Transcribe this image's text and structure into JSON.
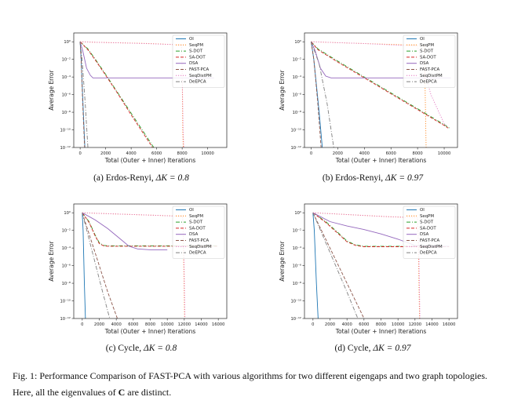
{
  "figure": {
    "caption_prefix": "Fig. 1: ",
    "caption_text": "Performance Comparison of FAST-PCA with various algorithms for two different eigengaps and two graph topologies. Here, all the eigenvalues of ",
    "caption_symbol": "C",
    "caption_suffix": " are distinct."
  },
  "legend_entries": [
    "OI",
    "SeqPM",
    "S-DOT",
    "SA-DOT",
    "DSA",
    "FAST-PCA",
    "SeqDistPM",
    "DeEPCA"
  ],
  "series_styles": {
    "OI": {
      "color": "#1f77b4",
      "dash": "solid"
    },
    "SeqPM": {
      "color": "#ff7f0e",
      "dash": "dot"
    },
    "S-DOT": {
      "color": "#2ca02c",
      "dash": "dashdot"
    },
    "SA-DOT": {
      "color": "#d62728",
      "dash": "dash"
    },
    "DSA": {
      "color": "#9467bd",
      "dash": "solid"
    },
    "FAST-PCA": {
      "color": "#8c564b",
      "dash": "dash"
    },
    "SeqDistPM": {
      "color": "#e377c2",
      "dash": "dot"
    },
    "DeEPCA": {
      "color": "#7f7f7f",
      "dash": "dashdot"
    }
  },
  "chart_data": [
    {
      "type": "line",
      "caption": "(a) Erdos-Renyi, ",
      "caption_math": "ΔK = 0.8",
      "xlabel": "Total (Outer + Inner) Iterations",
      "ylabel": "Average Error",
      "log_y": true,
      "xlim": [
        -500,
        11500
      ],
      "ylim_exp": [
        -12,
        1
      ],
      "xticks": [
        0,
        2000,
        4000,
        6000,
        8000,
        10000
      ],
      "xtick_labels": [
        "0",
        "2000",
        "4000",
        "6000",
        "8000",
        "10000"
      ],
      "yticks_exp": [
        0,
        -2,
        -4,
        -6,
        -8,
        -10,
        -12
      ],
      "ytick_labels": [
        "10⁰",
        "10⁻²",
        "10⁻⁴",
        "10⁻⁶",
        "10⁻⁸",
        "10⁻¹⁰",
        "10⁻¹²"
      ],
      "legend_position": "top-right",
      "series": [
        {
          "name": "OI",
          "x": [
            0,
            80,
            250,
            400
          ],
          "y_exp": [
            0,
            -2,
            -8,
            -13
          ]
        },
        {
          "name": "SeqPM",
          "x": [
            0,
            1000,
            2500,
            4000,
            5500,
            7000,
            7950,
            8000,
            8050,
            8100
          ],
          "y_exp": [
            0,
            -0.05,
            -0.1,
            -0.15,
            -0.2,
            -0.3,
            -0.35,
            -3,
            -10,
            -13
          ]
        },
        {
          "name": "S-DOT",
          "x": [
            0,
            600,
            1200,
            2000,
            3000,
            4000,
            5000,
            6000,
            6500
          ],
          "y_exp": [
            0,
            -0.8,
            -2,
            -3.7,
            -5.9,
            -8.1,
            -10.3,
            -12.5,
            -13
          ]
        },
        {
          "name": "SA-DOT",
          "x": [
            0,
            600,
            1200,
            2000,
            3000,
            4000,
            5000,
            6000,
            6400
          ],
          "y_exp": [
            0,
            -0.9,
            -2.1,
            -3.8,
            -6,
            -8.3,
            -10.5,
            -12.7,
            -13
          ]
        },
        {
          "name": "DSA",
          "x": [
            0,
            200,
            500,
            800,
            1000,
            2000,
            6000,
            10500
          ],
          "y_exp": [
            0,
            -1,
            -3,
            -3.8,
            -4.1,
            -4.1,
            -4.1,
            -4.1
          ]
        },
        {
          "name": "FAST-PCA",
          "x": [
            0,
            80,
            200,
            380
          ],
          "y_exp": [
            0,
            -2,
            -7,
            -13
          ]
        },
        {
          "name": "SeqDistPM",
          "x": [
            0,
            1000,
            3000,
            5000,
            7000,
            7950,
            8000,
            8080,
            8150
          ],
          "y_exp": [
            0,
            -0.05,
            -0.12,
            -0.2,
            -0.3,
            -0.38,
            -3,
            -10,
            -13
          ]
        },
        {
          "name": "DeEPCA",
          "x": [
            0,
            150,
            400,
            650
          ],
          "y_exp": [
            0,
            -2,
            -7,
            -13
          ]
        }
      ]
    },
    {
      "type": "line",
      "caption": "(b) Erdos-Renyi, ",
      "caption_math": "ΔK = 0.97",
      "xlabel": "Total (Outer + Inner) Iterations",
      "ylabel": "Average Error",
      "log_y": true,
      "xlim": [
        -500,
        11000
      ],
      "ylim_exp": [
        -12,
        1
      ],
      "xticks": [
        0,
        2000,
        4000,
        6000,
        8000,
        10000
      ],
      "xtick_labels": [
        "0",
        "2000",
        "4000",
        "6000",
        "8000",
        "10000"
      ],
      "yticks_exp": [
        0,
        -2,
        -4,
        -6,
        -8,
        -10,
        -12
      ],
      "ytick_labels": [
        "10⁰",
        "10⁻²",
        "10⁻⁴",
        "10⁻⁶",
        "10⁻⁸",
        "10⁻¹⁰",
        "10⁻¹²"
      ],
      "legend_position": "top-right",
      "series": [
        {
          "name": "OI",
          "x": [
            0,
            200,
            600,
            900
          ],
          "y_exp": [
            0,
            -2,
            -8,
            -13
          ]
        },
        {
          "name": "SeqPM",
          "x": [
            0,
            2000,
            4000,
            6000,
            8000,
            8500,
            8550,
            8650
          ],
          "y_exp": [
            0,
            -0.1,
            -0.2,
            -0.3,
            -0.4,
            -0.45,
            -4,
            -13
          ]
        },
        {
          "name": "S-DOT",
          "x": [
            0,
            500,
            2000,
            4000,
            6000,
            8000,
            10000,
            10400
          ],
          "y_exp": [
            0,
            -0.8,
            -2.2,
            -4.0,
            -5.8,
            -7.6,
            -9.4,
            -9.8
          ]
        },
        {
          "name": "SA-DOT",
          "x": [
            0,
            500,
            2000,
            4000,
            6000,
            8000,
            10000,
            10300
          ],
          "y_exp": [
            0,
            -0.9,
            -2.3,
            -4.1,
            -5.9,
            -7.7,
            -9.5,
            -9.8
          ]
        },
        {
          "name": "DSA",
          "x": [
            0,
            300,
            700,
            1100,
            1500,
            3000,
            7000,
            10500
          ],
          "y_exp": [
            0,
            -1,
            -3,
            -3.9,
            -4.1,
            -4.1,
            -4.1,
            -4.1
          ]
        },
        {
          "name": "FAST-PCA",
          "x": [
            0,
            200,
            500,
            800
          ],
          "y_exp": [
            0,
            -2,
            -7,
            -13
          ]
        },
        {
          "name": "SeqDistPM",
          "x": [
            0,
            2000,
            4000,
            6000,
            8000,
            9000,
            10000,
            10200
          ],
          "y_exp": [
            0,
            -0.1,
            -0.2,
            -0.35,
            -0.5,
            -6,
            -9.3,
            -9.6
          ]
        },
        {
          "name": "DeEPCA",
          "x": [
            0,
            600,
            1200,
            1800
          ],
          "y_exp": [
            0,
            -2.5,
            -7,
            -13
          ]
        }
      ]
    },
    {
      "type": "line",
      "caption": "(c) Cycle, ",
      "caption_math": "ΔK = 0.8",
      "xlabel": "Total (Outer + Inner) Iterations",
      "ylabel": "Average Error",
      "log_y": true,
      "xlim": [
        -1000,
        17000
      ],
      "ylim_exp": [
        -12,
        1
      ],
      "xticks": [
        0,
        2000,
        4000,
        6000,
        8000,
        10000,
        12000,
        14000,
        16000
      ],
      "xtick_labels": [
        "0",
        "2000",
        "4000",
        "6000",
        "8000",
        "10000",
        "12000",
        "14000",
        "16000"
      ],
      "yticks_exp": [
        0,
        -2,
        -4,
        -6,
        -8,
        -10,
        -12
      ],
      "ytick_labels": [
        "10⁰",
        "10⁻²",
        "10⁻⁴",
        "10⁻⁶",
        "10⁻⁸",
        "10⁻¹⁰",
        "10⁻¹²"
      ],
      "legend_position": "top-right",
      "series": [
        {
          "name": "OI",
          "x": [
            0,
            100,
            250,
            400
          ],
          "y_exp": [
            0,
            -2,
            -8,
            -13
          ]
        },
        {
          "name": "SeqPM",
          "x": [
            0,
            3000,
            6000,
            9000,
            11800,
            11900,
            12050
          ],
          "y_exp": [
            0,
            -0.1,
            -0.2,
            -0.3,
            -0.4,
            -4,
            -13
          ]
        },
        {
          "name": "S-DOT",
          "x": [
            0,
            800,
            1500,
            2000,
            2500,
            3000,
            6000,
            10000,
            16000
          ],
          "y_exp": [
            0,
            -1,
            -2.5,
            -3.4,
            -3.7,
            -3.75,
            -3.75,
            -3.75,
            -3.75
          ]
        },
        {
          "name": "SA-DOT",
          "x": [
            0,
            800,
            1500,
            2000,
            2500,
            3000,
            6000,
            10000,
            16000
          ],
          "y_exp": [
            0,
            -1.1,
            -2.6,
            -3.5,
            -3.75,
            -3.8,
            -3.8,
            -3.8,
            -3.8
          ]
        },
        {
          "name": "DSA",
          "x": [
            0,
            1500,
            3000,
            4500,
            5500,
            6500,
            8000,
            10000
          ],
          "y_exp": [
            0,
            -0.8,
            -1.8,
            -3,
            -3.8,
            -4.1,
            -4.2,
            -4.2
          ]
        },
        {
          "name": "FAST-PCA",
          "x": [
            0,
            1500,
            3000,
            4500
          ],
          "y_exp": [
            0,
            -4.5,
            -9,
            -13
          ]
        },
        {
          "name": "SeqDistPM",
          "x": [
            0,
            3000,
            6000,
            9000,
            11800,
            11950,
            12100
          ],
          "y_exp": [
            0,
            -0.1,
            -0.2,
            -0.3,
            -0.42,
            -4,
            -13
          ]
        },
        {
          "name": "DeEPCA",
          "x": [
            0,
            1200,
            2400,
            3500
          ],
          "y_exp": [
            0,
            -4.5,
            -9,
            -13
          ]
        }
      ]
    },
    {
      "type": "line",
      "caption": "(d) Cycle, ",
      "caption_math": "ΔK = 0.97",
      "xlabel": "Total (Outer + Inner) Iterations",
      "ylabel": "Average Error",
      "log_y": true,
      "xlim": [
        -1000,
        17000
      ],
      "ylim_exp": [
        -12,
        1
      ],
      "xticks": [
        0,
        2000,
        4000,
        6000,
        8000,
        10000,
        12000,
        14000,
        16000
      ],
      "xtick_labels": [
        "0",
        "2000",
        "4000",
        "6000",
        "8000",
        "10000",
        "12000",
        "14000",
        "16000"
      ],
      "yticks_exp": [
        0,
        -2,
        -4,
        -6,
        -8,
        -10,
        -12
      ],
      "ytick_labels": [
        "10⁰",
        "10⁻²",
        "10⁻⁴",
        "10⁻⁶",
        "10⁻⁸",
        "10⁻¹⁰",
        "10⁻¹²"
      ],
      "legend_position": "top-right",
      "series": [
        {
          "name": "OI",
          "x": [
            0,
            150,
            400,
            650
          ],
          "y_exp": [
            0,
            -2,
            -8,
            -13
          ]
        },
        {
          "name": "SeqPM",
          "x": [
            0,
            3000,
            6000,
            9000,
            12300,
            12400,
            12550
          ],
          "y_exp": [
            0,
            -0.15,
            -0.3,
            -0.45,
            -0.55,
            -4,
            -13
          ]
        },
        {
          "name": "S-DOT",
          "x": [
            0,
            1500,
            3000,
            4000,
            5000,
            6000,
            8000,
            12000,
            16000
          ],
          "y_exp": [
            0,
            -1,
            -2.3,
            -3.2,
            -3.65,
            -3.8,
            -3.8,
            -3.8,
            -3.8
          ]
        },
        {
          "name": "SA-DOT",
          "x": [
            0,
            1500,
            3000,
            4000,
            5000,
            6000,
            8000,
            12000,
            16000
          ],
          "y_exp": [
            0,
            -1.1,
            -2.4,
            -3.3,
            -3.7,
            -3.85,
            -3.85,
            -3.85,
            -3.85
          ]
        },
        {
          "name": "DSA",
          "x": [
            0,
            2000,
            4000,
            6000,
            8000,
            10000,
            12000,
            13000,
            16000
          ],
          "y_exp": [
            0,
            -1,
            -1.5,
            -1.9,
            -2.4,
            -3,
            -3.7,
            -3.8,
            -3.8
          ]
        },
        {
          "name": "FAST-PCA",
          "x": [
            0,
            2500,
            4500,
            6500
          ],
          "y_exp": [
            0,
            -5,
            -9,
            -13
          ]
        },
        {
          "name": "SeqDistPM",
          "x": [
            0,
            3000,
            6000,
            9000,
            12300,
            12450,
            12600
          ],
          "y_exp": [
            0,
            -0.15,
            -0.3,
            -0.45,
            -0.56,
            -4,
            -13
          ]
        },
        {
          "name": "DeEPCA",
          "x": [
            0,
            2000,
            4000,
            5700
          ],
          "y_exp": [
            0,
            -4.5,
            -9,
            -13
          ]
        }
      ]
    }
  ]
}
